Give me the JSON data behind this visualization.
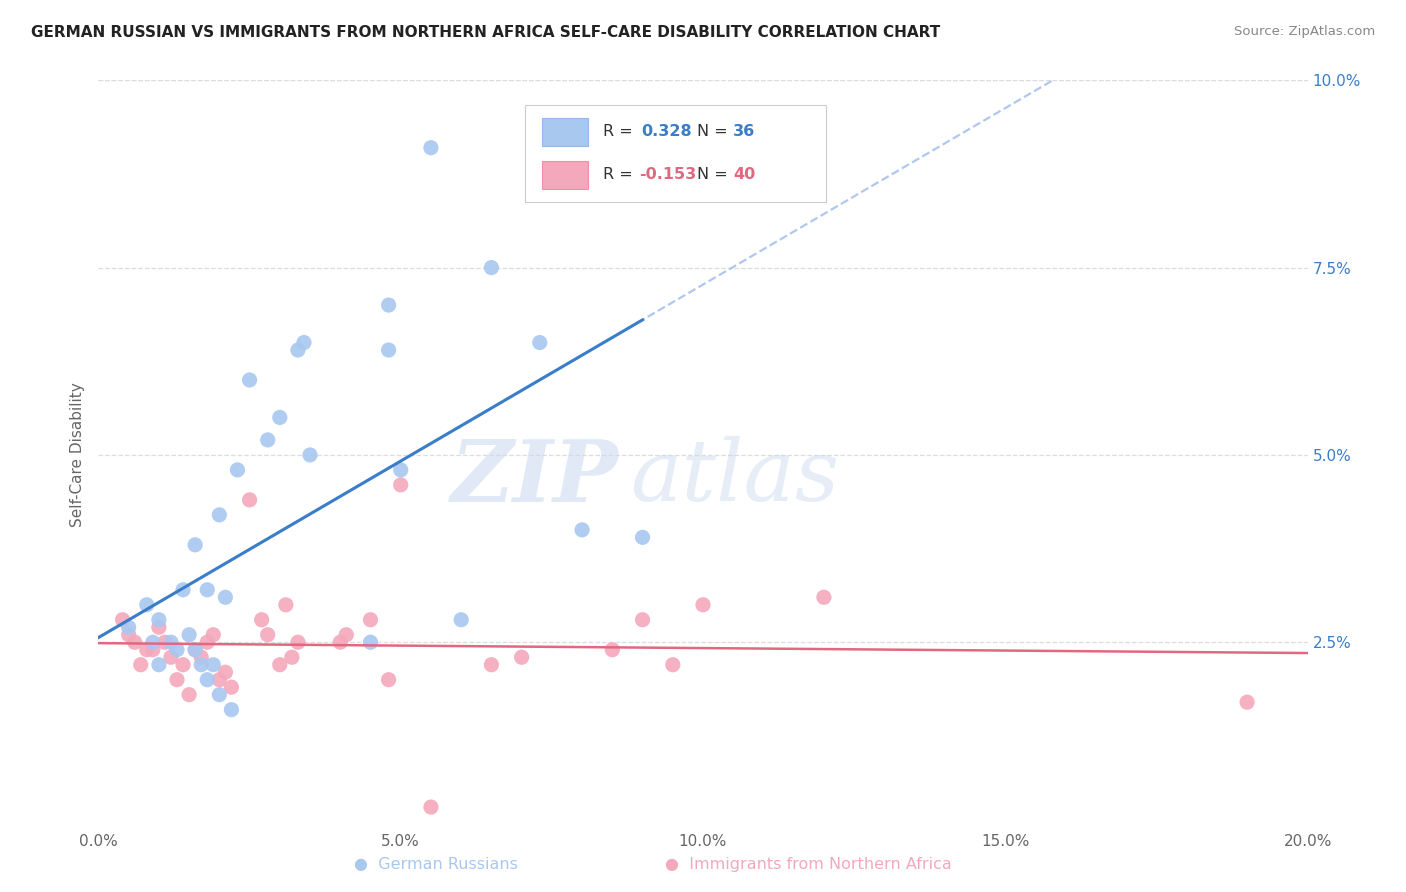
{
  "title": "GERMAN RUSSIAN VS IMMIGRANTS FROM NORTHERN AFRICA SELF-CARE DISABILITY CORRELATION CHART",
  "source": "Source: ZipAtlas.com",
  "ylabel": "Self-Care Disability",
  "xlim": [
    0.0,
    0.2
  ],
  "ylim": [
    0.0,
    0.1
  ],
  "blue_R": "0.328",
  "blue_N": "36",
  "pink_R": "-0.153",
  "pink_N": "40",
  "blue_color": "#A8C8F0",
  "pink_color": "#F4A8BC",
  "blue_line_color": "#3A7DC9",
  "pink_line_color": "#E06880",
  "blue_dash_color": "#B0C8F0",
  "watermark_zip": "ZIP",
  "watermark_atlas": "atlas",
  "blue_x": [
    0.005,
    0.008,
    0.009,
    0.01,
    0.01,
    0.012,
    0.013,
    0.014,
    0.015,
    0.016,
    0.016,
    0.017,
    0.018,
    0.018,
    0.019,
    0.02,
    0.02,
    0.021,
    0.022,
    0.023,
    0.025,
    0.028,
    0.03,
    0.033,
    0.034,
    0.035,
    0.045,
    0.048,
    0.048,
    0.05,
    0.055,
    0.06,
    0.065,
    0.073,
    0.08,
    0.09
  ],
  "blue_y": [
    0.027,
    0.03,
    0.025,
    0.028,
    0.022,
    0.025,
    0.024,
    0.032,
    0.026,
    0.038,
    0.024,
    0.022,
    0.02,
    0.032,
    0.022,
    0.018,
    0.042,
    0.031,
    0.016,
    0.048,
    0.06,
    0.052,
    0.055,
    0.064,
    0.065,
    0.05,
    0.025,
    0.07,
    0.064,
    0.048,
    0.091,
    0.028,
    0.075,
    0.065,
    0.04,
    0.039
  ],
  "pink_x": [
    0.004,
    0.005,
    0.006,
    0.007,
    0.008,
    0.009,
    0.01,
    0.011,
    0.012,
    0.013,
    0.014,
    0.015,
    0.016,
    0.017,
    0.018,
    0.019,
    0.02,
    0.021,
    0.022,
    0.025,
    0.027,
    0.028,
    0.03,
    0.031,
    0.032,
    0.033,
    0.04,
    0.041,
    0.045,
    0.048,
    0.05,
    0.055,
    0.065,
    0.07,
    0.085,
    0.09,
    0.095,
    0.1,
    0.12,
    0.19
  ],
  "pink_y": [
    0.028,
    0.026,
    0.025,
    0.022,
    0.024,
    0.024,
    0.027,
    0.025,
    0.023,
    0.02,
    0.022,
    0.018,
    0.024,
    0.023,
    0.025,
    0.026,
    0.02,
    0.021,
    0.019,
    0.044,
    0.028,
    0.026,
    0.022,
    0.03,
    0.023,
    0.025,
    0.025,
    0.026,
    0.028,
    0.02,
    0.046,
    0.003,
    0.022,
    0.023,
    0.024,
    0.028,
    0.022,
    0.03,
    0.031,
    0.017
  ]
}
